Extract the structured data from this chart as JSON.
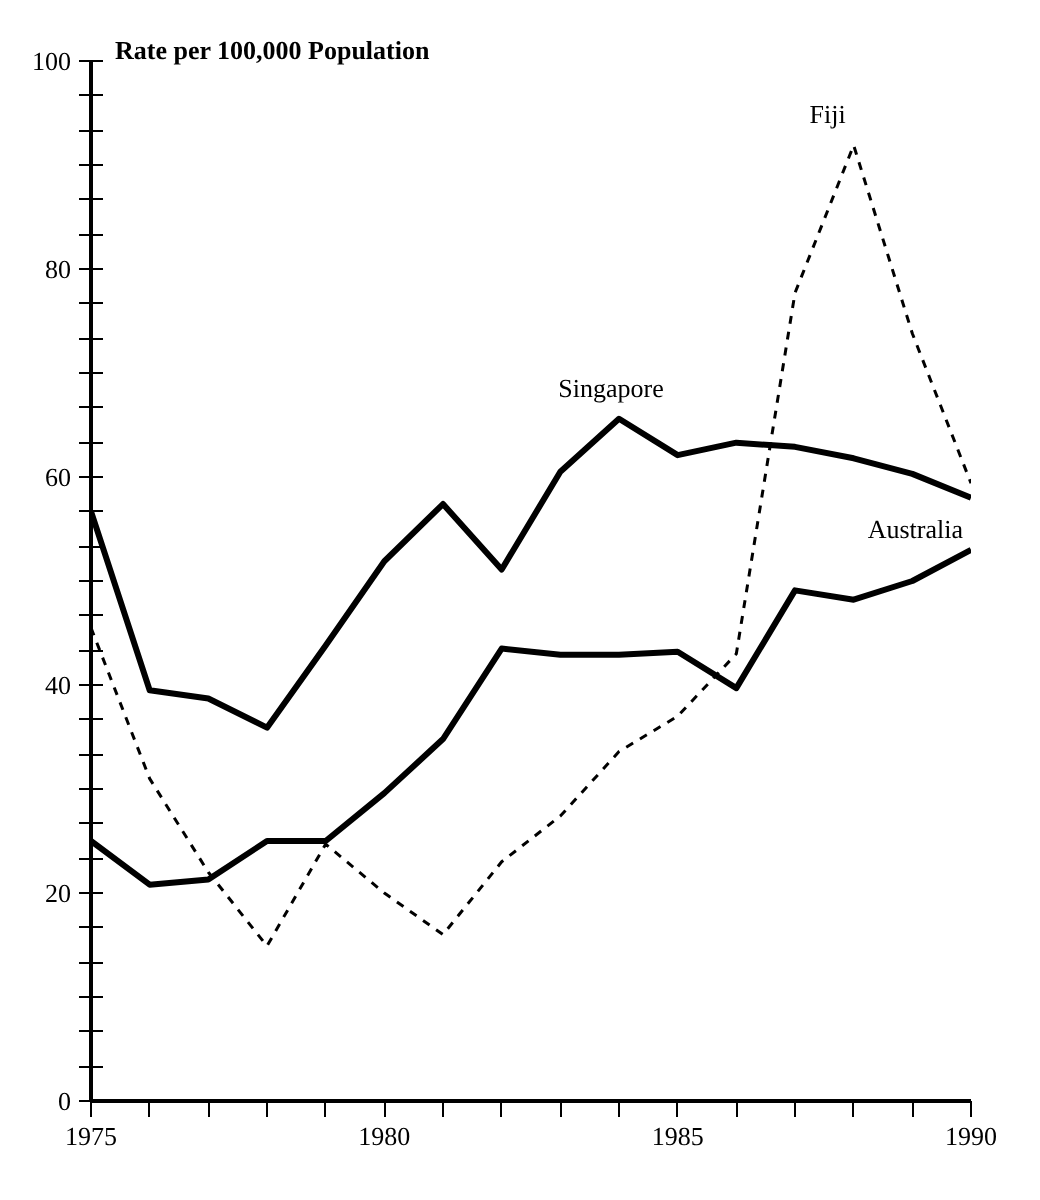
{
  "chart_data": {
    "type": "line",
    "ylabel": "Rate per 100,000 Population",
    "x": [
      1975,
      1976,
      1977,
      1978,
      1979,
      1980,
      1981,
      1982,
      1983,
      1984,
      1985,
      1986,
      1987,
      1988,
      1989,
      1990
    ],
    "series": [
      {
        "name": "Singapore",
        "color": "#000000",
        "line_style": "solid",
        "values": [
          56.7,
          39.5,
          38.7,
          35.9,
          43.8,
          51.9,
          57.4,
          51.1,
          60.5,
          65.6,
          62.1,
          63.3,
          62.9,
          61.8,
          60.3,
          58.0
        ]
      },
      {
        "name": "Australia",
        "color": "#000000",
        "line_style": "solid",
        "values": [
          25.0,
          20.8,
          21.3,
          25.0,
          25.0,
          29.6,
          34.8,
          43.5,
          42.9,
          42.9,
          43.2,
          39.7,
          49.1,
          48.2,
          50.0,
          53.0
        ]
      },
      {
        "name": "Fiji",
        "color": "#000000",
        "line_style": "dashed",
        "values": [
          45.5,
          31,
          22,
          14.9,
          24.7,
          20,
          16,
          23,
          27.4,
          33.6,
          37,
          43,
          77.7,
          91.9,
          73.8,
          59.4
        ]
      }
    ],
    "xlim": [
      1975,
      1990
    ],
    "ylim": [
      0,
      100
    ],
    "xticks": [
      1975,
      {
        "value": 1976,
        "label": null
      },
      {
        "value": 1977,
        "label": null
      },
      {
        "value": 1978,
        "label": null
      },
      {
        "value": 1979,
        "label": null
      },
      1980,
      {
        "value": 1981,
        "label": null
      },
      {
        "value": 1982,
        "label": null
      },
      {
        "value": 1983,
        "label": null
      },
      {
        "value": 1984,
        "label": null
      },
      1985,
      {
        "value": 1986,
        "label": null
      },
      {
        "value": 1987,
        "label": null
      },
      {
        "value": 1988,
        "label": null
      },
      {
        "value": 1989,
        "label": null
      },
      1990
    ],
    "yticks": [
      0,
      20,
      40,
      60,
      80,
      100
    ],
    "grid": false,
    "marker": "none"
  }
}
